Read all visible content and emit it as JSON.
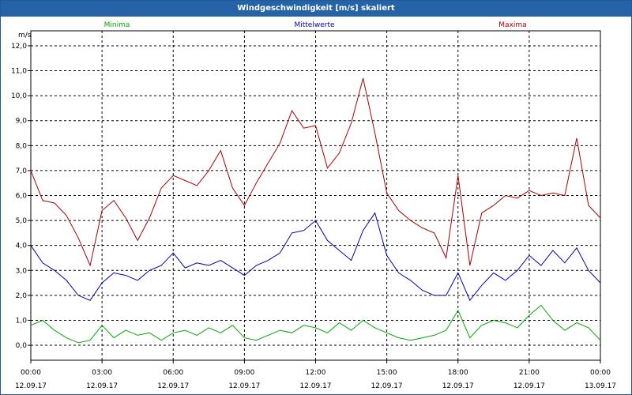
{
  "window": {
    "title": "Windgeschwindigkeit [m/s] skaliert"
  },
  "chart_data": {
    "type": "line",
    "title": "Windgeschwindigkeit [m/s] skaliert",
    "ylabel": "m/s",
    "ylim": [
      -0.6,
      12.6
    ],
    "xlim_hours": [
      0,
      24
    ],
    "yticks": [
      "0,0",
      "1,0",
      "2,0",
      "3,0",
      "4,0",
      "5,0",
      "6,0",
      "7,0",
      "8,0",
      "9,0",
      "10,0",
      "11,0",
      "12,0"
    ],
    "xticks": [
      {
        "time": "00:00",
        "date": "12.09.17"
      },
      {
        "time": "03:00",
        "date": "12.09.17"
      },
      {
        "time": "06:00",
        "date": "12.09.17"
      },
      {
        "time": "09:00",
        "date": "12.09.17"
      },
      {
        "time": "12:00",
        "date": "12.09.17"
      },
      {
        "time": "15:00",
        "date": "12.09.17"
      },
      {
        "time": "18:00",
        "date": "12.09.17"
      },
      {
        "time": "21:00",
        "date": "12.09.17"
      },
      {
        "time": "00:00",
        "date": "13.09.17"
      }
    ],
    "grid": true,
    "legend_placement": "top",
    "x_hours": [
      0,
      0.5,
      1,
      1.5,
      2,
      2.5,
      3,
      3.5,
      4,
      4.5,
      5,
      5.5,
      6,
      6.5,
      7,
      7.5,
      8,
      8.5,
      9,
      9.5,
      10,
      10.5,
      11,
      11.5,
      12,
      12.5,
      13,
      13.5,
      14,
      14.5,
      15,
      15.5,
      16,
      16.5,
      17,
      17.5,
      18,
      18.5,
      19,
      19.5,
      20,
      20.5,
      21,
      21.5,
      22,
      22.5,
      23,
      23.5,
      24
    ],
    "series": [
      {
        "name": "Minima",
        "color": "#00aa00",
        "values": [
          0.8,
          1.0,
          0.6,
          0.3,
          0.1,
          0.2,
          0.8,
          0.3,
          0.6,
          0.4,
          0.5,
          0.2,
          0.5,
          0.6,
          0.4,
          0.7,
          0.5,
          0.8,
          0.3,
          0.2,
          0.4,
          0.6,
          0.5,
          0.8,
          0.7,
          0.5,
          0.9,
          0.6,
          1.0,
          0.7,
          0.5,
          0.3,
          0.2,
          0.3,
          0.4,
          0.6,
          1.4,
          0.3,
          0.8,
          1.0,
          0.9,
          0.7,
          1.2,
          1.6,
          1.0,
          0.6,
          0.9,
          0.7,
          0.2
        ]
      },
      {
        "name": "Mittelwerte",
        "color": "#0000aa",
        "values": [
          4.0,
          3.3,
          3.0,
          2.6,
          2.0,
          1.8,
          2.5,
          2.9,
          2.8,
          2.6,
          3.0,
          3.2,
          3.7,
          3.1,
          3.3,
          3.2,
          3.4,
          3.1,
          2.8,
          3.2,
          3.4,
          3.7,
          4.5,
          4.6,
          5.0,
          4.2,
          3.8,
          3.4,
          4.6,
          5.3,
          3.6,
          2.9,
          2.6,
          2.2,
          2.0,
          2.0,
          2.9,
          1.8,
          2.4,
          2.9,
          2.6,
          3.0,
          3.6,
          3.2,
          3.8,
          3.3,
          3.9,
          3.0,
          2.5
        ]
      },
      {
        "name": "Maxima",
        "color": "#aa0000",
        "values": [
          7.0,
          5.8,
          5.7,
          5.2,
          4.3,
          3.2,
          5.4,
          5.8,
          5.1,
          4.2,
          5.1,
          6.3,
          6.8,
          6.6,
          6.4,
          7.0,
          7.8,
          6.3,
          5.6,
          6.5,
          7.3,
          8.1,
          9.4,
          8.7,
          8.8,
          7.1,
          7.7,
          8.9,
          10.7,
          8.5,
          6.1,
          5.4,
          5.0,
          4.7,
          4.5,
          3.5,
          6.8,
          3.2,
          5.3,
          5.6,
          6.0,
          5.9,
          6.2,
          6.0,
          6.1,
          6.0,
          8.3,
          5.6,
          5.1
        ]
      }
    ]
  }
}
